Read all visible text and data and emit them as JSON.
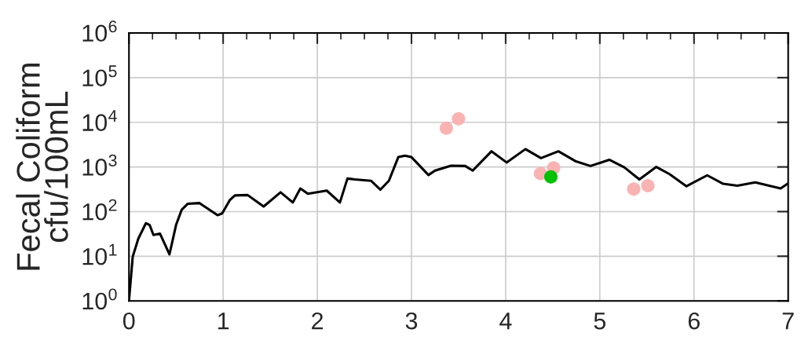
{
  "chart_data": {
    "type": "line",
    "ylabel": "Fecal Coliform\ncfu/100mL",
    "log": "y",
    "grid": true,
    "line_style": "solid",
    "xlim": [
      0,
      7
    ],
    "ylim": [
      1,
      1000000
    ],
    "xticks": [
      0,
      {
        "value": 0.25,
        "label": null
      },
      {
        "value": 0.5,
        "label": null
      },
      {
        "value": 0.75,
        "label": null
      },
      1,
      {
        "value": 1.25,
        "label": null
      },
      {
        "value": 1.5,
        "label": null
      },
      {
        "value": 1.75,
        "label": null
      },
      2,
      {
        "value": 2.25,
        "label": null
      },
      {
        "value": 2.5,
        "label": null
      },
      {
        "value": 2.75,
        "label": null
      },
      3,
      {
        "value": 3.25,
        "label": null
      },
      {
        "value": 3.5,
        "label": null
      },
      {
        "value": 3.75,
        "label": null
      },
      4,
      {
        "value": 4.25,
        "label": null
      },
      {
        "value": 4.5,
        "label": null
      },
      {
        "value": 4.75,
        "label": null
      },
      5,
      {
        "value": 5.25,
        "label": null
      },
      {
        "value": 5.5,
        "label": null
      },
      {
        "value": 5.75,
        "label": null
      },
      6,
      {
        "value": 6.25,
        "label": null
      },
      {
        "value": 6.5,
        "label": null
      },
      {
        "value": 6.75,
        "label": null
      },
      7
    ],
    "yticks": [
      {
        "value": 1,
        "label": "10$^{0}$"
      },
      {
        "value": 10,
        "label": "10$^{1}$"
      },
      {
        "value": 100,
        "label": "10$^{2}$"
      },
      {
        "value": 1000,
        "label": "10$^{3}$"
      },
      {
        "value": 10000,
        "label": "10$^{4}$"
      },
      {
        "value": 100000,
        "label": "10$^{5}$"
      },
      {
        "value": 1000000,
        "label": "10$^{6}$"
      }
    ],
    "series": [
      {
        "marker": "none",
        "color": "#000000",
        "x": [
          0,
          0.04,
          0.1,
          0.18,
          0.22,
          0.26,
          0.33,
          0.43,
          0.5,
          0.56,
          0.625,
          0.75,
          0.94,
          0.99,
          1.07,
          1.125,
          1.26,
          1.43,
          1.61,
          1.74,
          1.82,
          1.9,
          2.1,
          2.24,
          2.32,
          2.4,
          2.57,
          2.67,
          2.76,
          2.86,
          2.93,
          3.0,
          3.18,
          3.25,
          3.42,
          3.57,
          3.65,
          3.85,
          4.01,
          4.21,
          4.375,
          4.56,
          4.74,
          4.9,
          5.1,
          5.26,
          5.42,
          5.6,
          5.74,
          5.92,
          6.14,
          6.31,
          6.46,
          6.65,
          6.92,
          7.0
        ],
        "values": [
          1,
          9.8,
          25,
          55,
          50,
          30,
          32,
          11,
          50,
          110,
          150,
          155,
          83,
          91,
          180,
          230,
          235,
          130,
          270,
          160,
          330,
          250,
          295,
          160,
          550,
          525,
          490,
          310,
          490,
          1660,
          1780,
          1660,
          660,
          830,
          1070,
          1050,
          830,
          2240,
          1260,
          2510,
          1580,
          2240,
          1350,
          1050,
          1450,
          980,
          525,
          1000,
          690,
          370,
          650,
          420,
          380,
          450,
          330,
          430
        ]
      },
      {
        "type": "scatter",
        "marker": "circle",
        "color": "#f9b3b3",
        "x": [
          3.37,
          3.5,
          4.37,
          4.51,
          5.36,
          5.51
        ],
        "values": [
          7400,
          12000,
          710,
          950,
          320,
          380
        ]
      },
      {
        "type": "scatter",
        "marker": "circle",
        "color": "#00c000",
        "x": [
          4.48
        ],
        "values": [
          600
        ]
      }
    ]
  }
}
